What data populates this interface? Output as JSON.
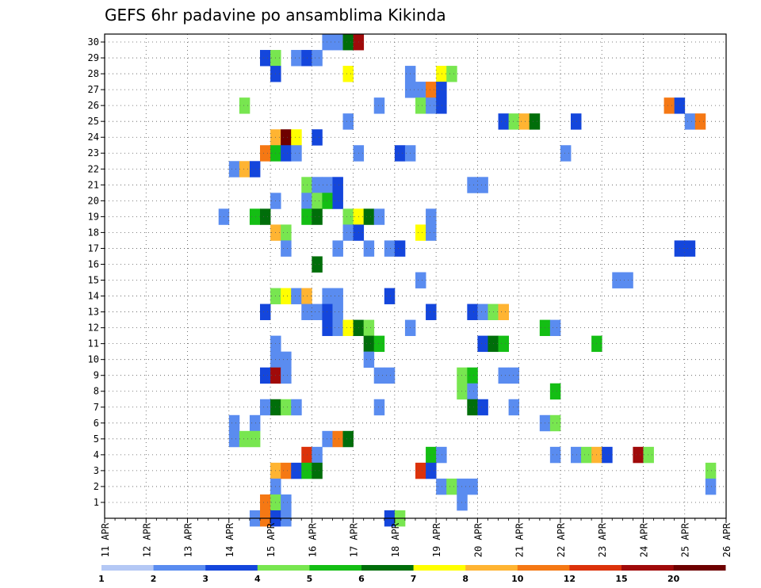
{
  "chart_data": {
    "type": "heatmap",
    "title": "GEFS 6hr padavine po ansamblima Kikinda",
    "xlabel": "",
    "ylabel": "",
    "x_tick_labels": [
      "11 APR",
      "12 APR",
      "13 APR",
      "14 APR",
      "15 APR",
      "16 APR",
      "17 APR",
      "18 APR",
      "19 APR",
      "20 APR",
      "21 APR",
      "22 APR",
      "23 APR",
      "24 APR",
      "25 APR",
      "26 APR"
    ],
    "x_range_steps": [
      0,
      60
    ],
    "y_range": [
      0,
      30
    ],
    "grid": true,
    "colorbar": {
      "labels": [
        "1",
        "2",
        "3",
        "4",
        "5",
        "6",
        "7",
        "8",
        "10",
        "12",
        "15",
        "20"
      ],
      "colors": [
        "#b4c8f5",
        "#5a8cf0",
        "#1446dc",
        "#78e650",
        "#14be14",
        "#006e0a",
        "#ffff00",
        "#ffb432",
        "#f57814",
        "#dc320a",
        "#a00a0a",
        "#6e0000"
      ]
    },
    "points": [
      [
        21,
        30,
        1
      ],
      [
        22,
        30,
        1
      ],
      [
        23,
        30,
        5
      ],
      [
        24,
        30,
        10
      ],
      [
        15,
        29,
        2
      ],
      [
        16,
        29,
        3
      ],
      [
        18,
        29,
        1
      ],
      [
        19,
        29,
        2
      ],
      [
        20,
        29,
        1
      ],
      [
        16,
        28,
        2
      ],
      [
        23,
        28,
        6
      ],
      [
        29,
        28,
        1
      ],
      [
        32,
        28,
        6
      ],
      [
        33,
        28,
        3
      ],
      [
        29,
        27,
        1
      ],
      [
        30,
        27,
        1
      ],
      [
        31,
        27,
        8
      ],
      [
        32,
        27,
        2
      ],
      [
        13,
        26,
        3
      ],
      [
        26,
        26,
        1
      ],
      [
        30,
        26,
        3
      ],
      [
        31,
        26,
        1
      ],
      [
        32,
        26,
        2
      ],
      [
        54,
        26,
        8
      ],
      [
        55,
        26,
        2
      ],
      [
        23,
        25,
        1
      ],
      [
        38,
        25,
        2
      ],
      [
        39,
        25,
        3
      ],
      [
        40,
        25,
        7
      ],
      [
        41,
        25,
        5
      ],
      [
        45,
        25,
        2
      ],
      [
        56,
        25,
        1
      ],
      [
        57,
        25,
        8
      ],
      [
        16,
        24,
        7
      ],
      [
        17,
        24,
        11
      ],
      [
        18,
        24,
        6
      ],
      [
        20,
        24,
        2
      ],
      [
        15,
        23,
        8
      ],
      [
        16,
        23,
        4
      ],
      [
        17,
        23,
        2
      ],
      [
        18,
        23,
        1
      ],
      [
        24,
        23,
        1
      ],
      [
        28,
        23,
        2
      ],
      [
        29,
        23,
        1
      ],
      [
        44,
        23,
        1
      ],
      [
        12,
        22,
        1
      ],
      [
        13,
        22,
        7
      ],
      [
        14,
        22,
        2
      ],
      [
        19,
        21,
        3
      ],
      [
        20,
        21,
        1
      ],
      [
        21,
        21,
        1
      ],
      [
        22,
        21,
        2
      ],
      [
        35,
        21,
        1
      ],
      [
        36,
        21,
        1
      ],
      [
        16,
        20,
        1
      ],
      [
        19,
        20,
        1
      ],
      [
        20,
        20,
        3
      ],
      [
        21,
        20,
        4
      ],
      [
        22,
        20,
        2
      ],
      [
        11,
        19,
        1
      ],
      [
        14,
        19,
        4
      ],
      [
        15,
        19,
        5
      ],
      [
        19,
        19,
        4
      ],
      [
        20,
        19,
        5
      ],
      [
        23,
        19,
        3
      ],
      [
        24,
        19,
        6
      ],
      [
        25,
        19,
        5
      ],
      [
        26,
        19,
        1
      ],
      [
        31,
        19,
        1
      ],
      [
        16,
        18,
        7
      ],
      [
        17,
        18,
        3
      ],
      [
        23,
        18,
        1
      ],
      [
        24,
        18,
        2
      ],
      [
        30,
        18,
        6
      ],
      [
        31,
        18,
        1
      ],
      [
        17,
        17,
        1
      ],
      [
        22,
        17,
        1
      ],
      [
        25,
        17,
        1
      ],
      [
        27,
        17,
        1
      ],
      [
        28,
        17,
        2
      ],
      [
        55,
        17,
        2
      ],
      [
        56,
        17,
        2
      ],
      [
        20,
        16,
        5
      ],
      [
        30,
        15,
        1
      ],
      [
        49,
        15,
        1
      ],
      [
        50,
        15,
        1
      ],
      [
        16,
        14,
        3
      ],
      [
        17,
        14,
        6
      ],
      [
        18,
        14,
        1
      ],
      [
        19,
        14,
        7
      ],
      [
        21,
        14,
        1
      ],
      [
        22,
        14,
        1
      ],
      [
        27,
        14,
        2
      ],
      [
        15,
        13,
        2
      ],
      [
        19,
        13,
        1
      ],
      [
        20,
        13,
        1
      ],
      [
        21,
        13,
        2
      ],
      [
        22,
        13,
        1
      ],
      [
        31,
        13,
        2
      ],
      [
        35,
        13,
        2
      ],
      [
        36,
        13,
        1
      ],
      [
        37,
        13,
        3
      ],
      [
        38,
        13,
        7
      ],
      [
        21,
        12,
        2
      ],
      [
        22,
        12,
        1
      ],
      [
        23,
        12,
        6
      ],
      [
        24,
        12,
        5
      ],
      [
        25,
        12,
        3
      ],
      [
        29,
        12,
        1
      ],
      [
        42,
        12,
        4
      ],
      [
        43,
        12,
        1
      ],
      [
        16,
        11,
        1
      ],
      [
        25,
        11,
        5
      ],
      [
        26,
        11,
        4
      ],
      [
        36,
        11,
        2
      ],
      [
        37,
        11,
        5
      ],
      [
        38,
        11,
        4
      ],
      [
        47,
        11,
        4
      ],
      [
        16,
        10,
        1
      ],
      [
        17,
        10,
        1
      ],
      [
        25,
        10,
        1
      ],
      [
        15,
        9,
        2
      ],
      [
        16,
        9,
        10
      ],
      [
        17,
        9,
        1
      ],
      [
        26,
        9,
        1
      ],
      [
        27,
        9,
        1
      ],
      [
        34,
        9,
        3
      ],
      [
        35,
        9,
        4
      ],
      [
        38,
        9,
        1
      ],
      [
        39,
        9,
        1
      ],
      [
        34,
        8,
        3
      ],
      [
        35,
        8,
        1
      ],
      [
        43,
        8,
        4
      ],
      [
        15,
        7,
        1
      ],
      [
        16,
        7,
        5
      ],
      [
        17,
        7,
        3
      ],
      [
        18,
        7,
        1
      ],
      [
        26,
        7,
        1
      ],
      [
        35,
        7,
        5
      ],
      [
        36,
        7,
        2
      ],
      [
        39,
        7,
        1
      ],
      [
        12,
        6,
        1
      ],
      [
        14,
        6,
        1
      ],
      [
        42,
        6,
        1
      ],
      [
        43,
        6,
        3
      ],
      [
        12,
        5,
        1
      ],
      [
        13,
        5,
        3
      ],
      [
        14,
        5,
        3
      ],
      [
        21,
        5,
        1
      ],
      [
        22,
        5,
        8
      ],
      [
        23,
        5,
        5
      ],
      [
        19,
        4,
        9
      ],
      [
        20,
        4,
        1
      ],
      [
        31,
        4,
        4
      ],
      [
        32,
        4,
        1
      ],
      [
        43,
        4,
        1
      ],
      [
        45,
        4,
        1
      ],
      [
        46,
        4,
        3
      ],
      [
        47,
        4,
        7
      ],
      [
        48,
        4,
        2
      ],
      [
        51,
        4,
        10
      ],
      [
        52,
        4,
        3
      ],
      [
        16,
        3,
        7
      ],
      [
        17,
        3,
        8
      ],
      [
        18,
        3,
        2
      ],
      [
        19,
        3,
        4
      ],
      [
        20,
        3,
        5
      ],
      [
        30,
        3,
        9
      ],
      [
        31,
        3,
        2
      ],
      [
        58,
        3,
        3
      ],
      [
        16,
        2,
        1
      ],
      [
        32,
        2,
        1
      ],
      [
        33,
        2,
        3
      ],
      [
        34,
        2,
        1
      ],
      [
        35,
        2,
        1
      ],
      [
        58,
        2,
        1
      ],
      [
        15,
        1,
        8
      ],
      [
        16,
        1,
        3
      ],
      [
        17,
        1,
        1
      ],
      [
        34,
        1,
        1
      ],
      [
        14,
        0,
        1
      ],
      [
        15,
        0,
        8
      ],
      [
        16,
        0,
        2
      ],
      [
        17,
        0,
        1
      ],
      [
        27,
        0,
        2
      ],
      [
        28,
        0,
        3
      ]
    ]
  }
}
